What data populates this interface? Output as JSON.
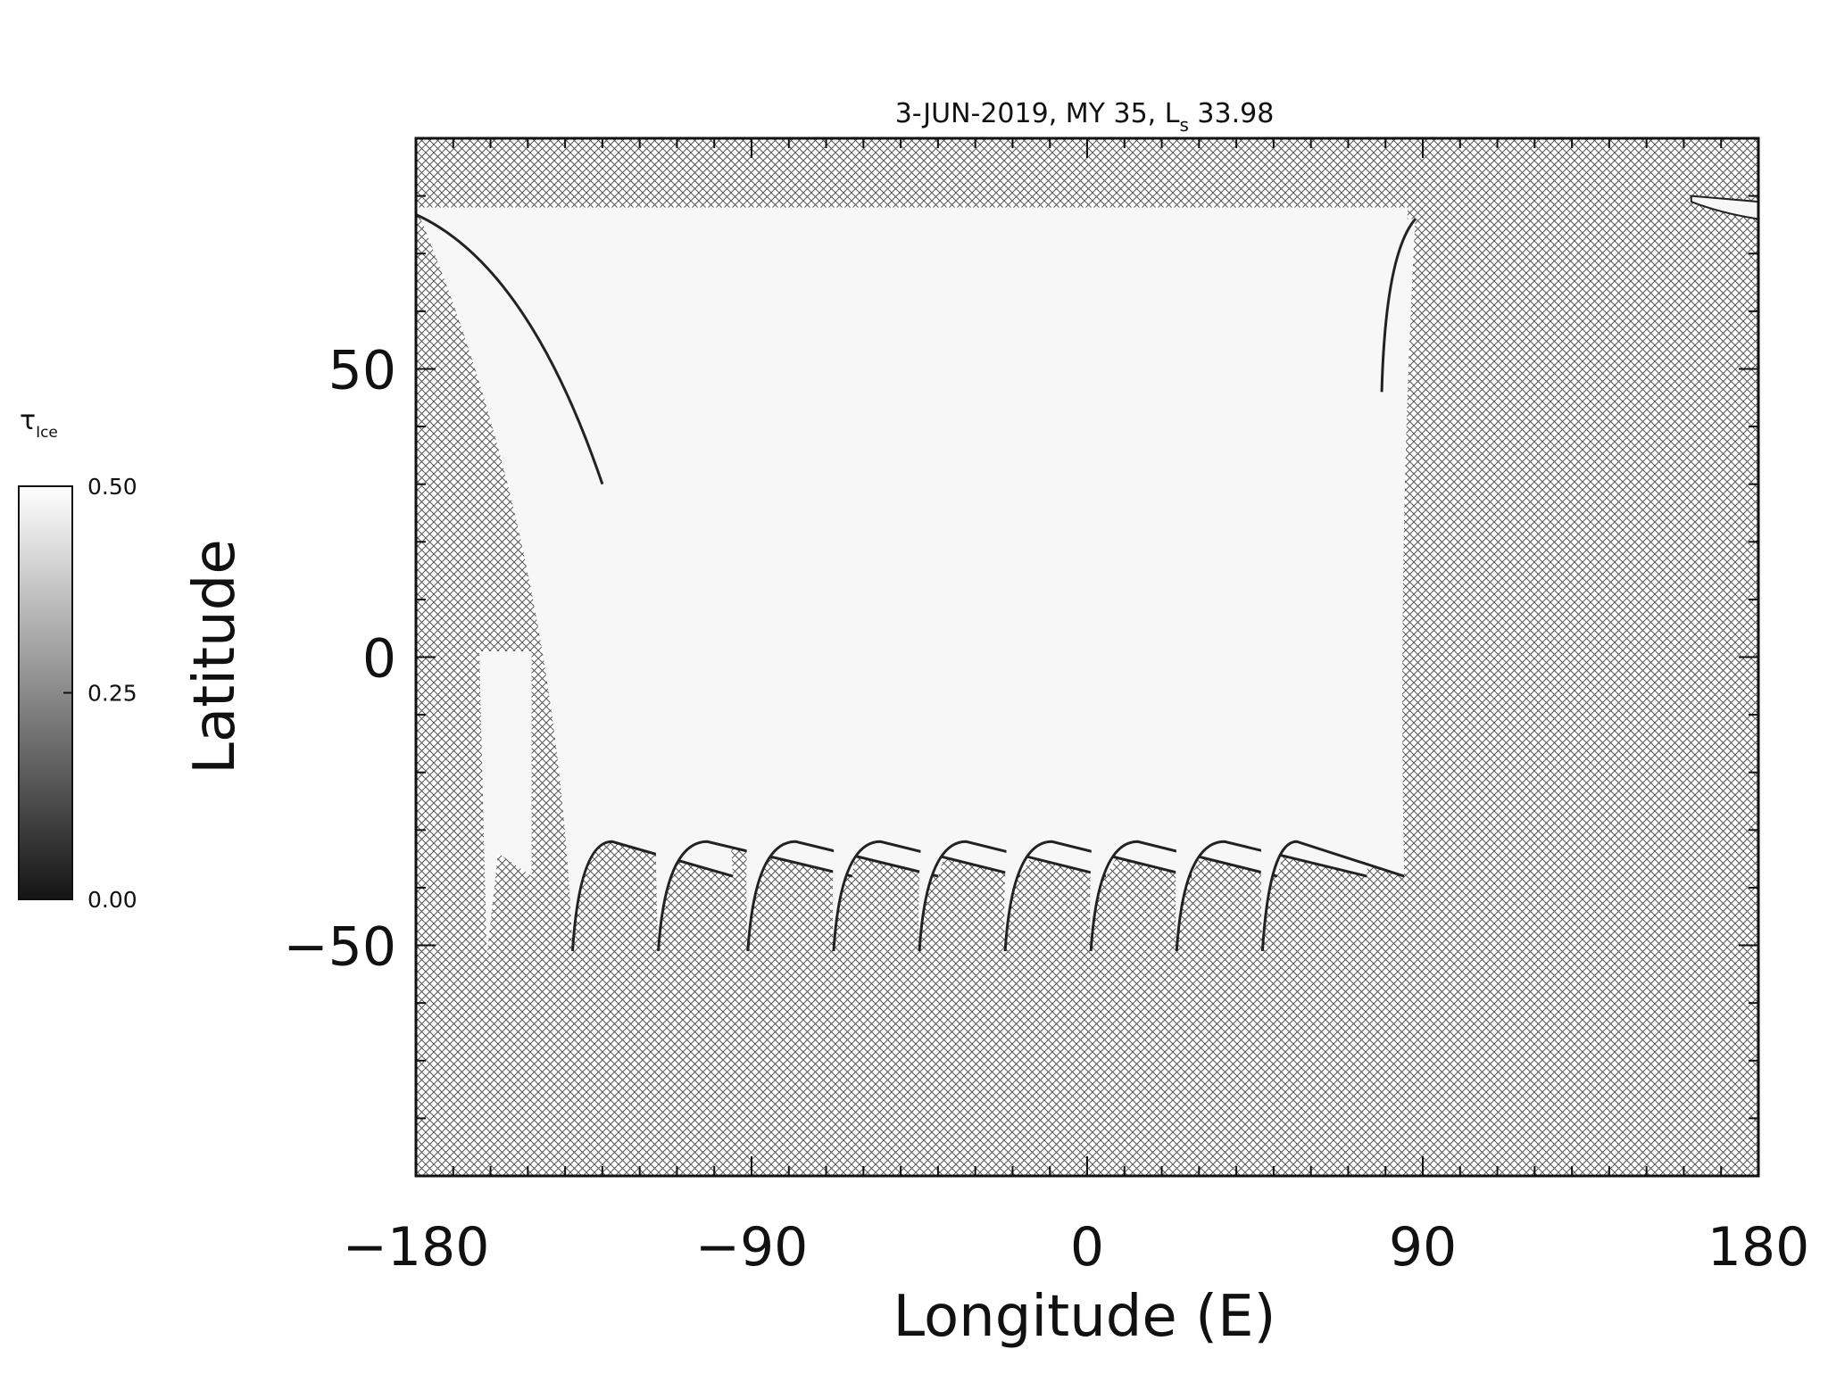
{
  "chart_data": {
    "type": "heatmap",
    "title": {
      "prefix": "3-JUN-2019, MY 35,  L",
      "subscript": "s",
      "value": " 33.98"
    },
    "xlabel": "Longitude (E)",
    "ylabel": "Latitude",
    "xlim": [
      -180,
      180
    ],
    "ylim": [
      -90,
      90
    ],
    "x_ticks": [
      -180,
      -90,
      0,
      90,
      180
    ],
    "x_tick_labels": [
      "−180",
      "−90",
      "0",
      "90",
      "180"
    ],
    "y_ticks": [
      -50,
      0,
      50
    ],
    "y_tick_labels": [
      "−50",
      "0",
      "50"
    ],
    "x_minor_step": 10,
    "y_minor_step": 10,
    "grid": false,
    "colorbar": {
      "label": "τ",
      "label_subscript": "Ice",
      "min": 0.0,
      "max": 0.5,
      "tick_values": [
        0.0,
        0.25,
        0.5
      ],
      "tick_labels": [
        "0.00",
        "0.25",
        "0.50"
      ],
      "colormap": "grayscale",
      "position": "left"
    },
    "no_data_fill": "cross-hatch",
    "swaths": [
      {
        "lon_top_left": -180,
        "lon_top_right": -96,
        "lat_top": 78,
        "lon_bottom_left": -140,
        "lon_bottom_right": -95,
        "lat_bottom": -38,
        "tip_lon": -138,
        "tip_lat": -51
      },
      {
        "lon_top_left": -96,
        "lon_top_right": -48,
        "lat_top": 78,
        "lon_bottom_left": -117,
        "lon_bottom_right": -63,
        "lat_bottom": -38,
        "tip_lon": -115,
        "tip_lat": -51
      },
      {
        "lon_top_left": -48,
        "lon_top_right": -4,
        "lat_top": 78,
        "lon_bottom_left": -93,
        "lon_bottom_right": -40,
        "lat_bottom": -38,
        "tip_lon": -91,
        "tip_lat": -51
      },
      {
        "lon_top_left": -4,
        "lon_top_right": 40,
        "lat_top": 78,
        "lon_bottom_left": -70,
        "lon_bottom_right": -18,
        "lat_bottom": -38,
        "tip_lon": -68,
        "tip_lat": -51
      },
      {
        "lon_top_left": 40,
        "lon_top_right": 63,
        "lat_top": 78,
        "lon_bottom_left": -47,
        "lon_bottom_right": 5,
        "lat_bottom": -38,
        "tip_lon": -45,
        "tip_lat": -51
      },
      {
        "lon_top_left": 63,
        "lon_top_right": 72,
        "lat_top": 78,
        "lon_bottom_left": -24,
        "lon_bottom_right": 28,
        "lat_bottom": -38,
        "tip_lon": -22,
        "tip_lat": -51
      },
      {
        "lon_top_left": 72,
        "lon_top_right": 80,
        "lat_top": 78,
        "lon_bottom_left": -1,
        "lon_bottom_right": 51,
        "lat_bottom": -38,
        "tip_lon": 1,
        "tip_lat": -51
      },
      {
        "lon_top_left": 80,
        "lon_top_right": 86,
        "lat_top": 78,
        "lon_bottom_left": 22,
        "lon_bottom_right": 75,
        "lat_bottom": -38,
        "tip_lon": 24,
        "tip_lat": -51
      },
      {
        "lon_top_left": 86,
        "lon_top_right": 88,
        "lat_top": 76,
        "lon_bottom_left": 45,
        "lon_bottom_right": 85,
        "lat_bottom": -38,
        "tip_lon": 47,
        "tip_lat": -51
      }
    ],
    "extra_swath": {
      "lon_left": -163,
      "lon_right": -149,
      "lat_top": 1,
      "lat_bottom": -38,
      "tip_lon": -161,
      "tip_lat": -52
    },
    "corner_swath": {
      "lon_left": 162,
      "lon_right": 180,
      "lat_top": 80,
      "lat_bottom": 76
    }
  }
}
